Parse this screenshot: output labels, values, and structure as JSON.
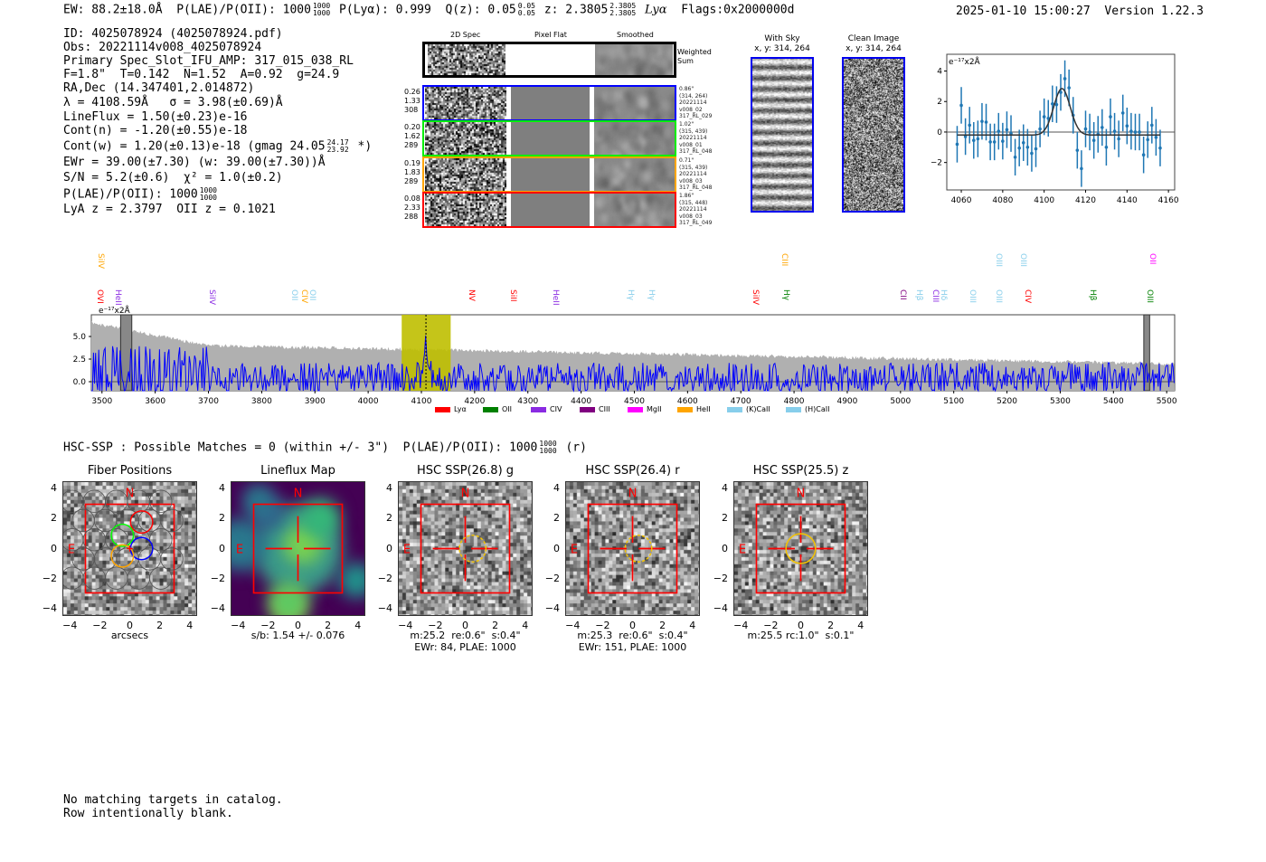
{
  "header": {
    "ew": "EW: 88.2±18.0Å",
    "plae_label": "P(LAE)/P(OII): 1000",
    "plae_hi": "1000",
    "plae_lo": "1000",
    "plya": "P(Lyα): 0.999",
    "qz": "Q(z): 0.05",
    "qz_hi": "0.05",
    "qz_lo": "0.05",
    "z": "z: 2.3805",
    "z_hi": "2.3805",
    "z_lo": "2.3805",
    "z_line": "Lyα",
    "flags": "Flags:0x2000000d",
    "timestamp": "2025-01-10 15:00:27",
    "version": "Version 1.22.3"
  },
  "info": {
    "id": "ID: 4025078924 (4025078924.pdf)",
    "obs": "Obs: 20221114v008_4025078924",
    "primary": "Primary Spec_Slot_IFU_AMP: 317_015_038_RL",
    "fiber": "F=1.8\"  T=0.142  N=1.52  A=0.92  g=24.9",
    "radec": "RA,Dec (14.347401,2.014872)",
    "lambda": "λ = 4108.59Å   σ = 3.98(±0.69)Å",
    "lineflux": "LineFlux = 1.50(±0.23)e-16",
    "contn": "Cont(n) = -1.20(±0.55)e-18",
    "contw": "Cont(w) = 1.20(±0.13)e-18 (gmag 24.05",
    "contw_hi": "24.17",
    "contw_lo": "23.92",
    "contw_end": "*)",
    "ewr": "EWr = 39.00(±7.30) (w: 39.00(±7.30))Å",
    "sn": "S/N = 5.2(±0.6)  χ² = 1.0(±0.2)",
    "plae": "P(LAE)/P(OII): 1000",
    "plae_hi": "1000",
    "plae_lo": "1000",
    "z": "LyA z = 2.3797  OII z = 0.1021"
  },
  "spec2d": {
    "col_headers": [
      "2D Spec",
      "Pixel Flat",
      "Smoothed"
    ],
    "weighted_label": "Weighted\nSum",
    "rows": [
      {
        "color": "#0000ff",
        "left": "0.26\n1.33\n308",
        "right": "0.86\"\n(314, 264)\n20221114\nv008_02\n317_RL_029"
      },
      {
        "color": "#00ee00",
        "left": "0.20\n1.62\n289",
        "right": "1.02\"\n(315, 439)\n20221114\nv008_01\n317_RL_048"
      },
      {
        "color": "#ffa500",
        "left": "0.19\n1.83\n289",
        "right": "0.71\"\n(315, 439)\n20221114\nv008_03\n317_RL_048"
      },
      {
        "color": "#ff0000",
        "left": "0.08\n2.33\n288",
        "right": "1.86\"\n(315, 448)\n20221114\nv008_03\n317_RL_049"
      }
    ]
  },
  "cutouts": {
    "with_sky": "With Sky\nx, y: 314, 264",
    "clean": "Clean Image\nx, y: 314, 264"
  },
  "hsc": {
    "summary": "HSC-SSP : Possible Matches = 0 (within +/- 3\")  P(LAE)/P(OII): 1000",
    "summary_hi": "1000",
    "summary_lo": "1000",
    "summary_end": "(r)",
    "ticks": [
      "−4",
      "−2",
      "0",
      "2",
      "4"
    ],
    "north": "N",
    "east": "E",
    "panels": [
      {
        "title": "Fiber Positions",
        "caption": "arcsecs"
      },
      {
        "title": "Lineflux Map",
        "caption": "s/b: 1.54 +/- 0.076"
      },
      {
        "title": "HSC SSP(26.8) g",
        "caption": "m:25.2  re:0.6\"  s:0.4\"\nEWr: 84, PLAE: 1000"
      },
      {
        "title": "HSC SSP(26.4) r",
        "caption": "m:25.3  re:0.6\"  s:0.4\"\nEWr: 151, PLAE: 1000"
      },
      {
        "title": "HSC SSP(25.5) z",
        "caption": "m:25.5 rc:1.0\"  s:0.1\""
      }
    ]
  },
  "footer": {
    "line1": "No matching targets in catalog.",
    "line2": "Row intentionally blank."
  },
  "chart_data": [
    {
      "type": "scatter",
      "title": "",
      "unit_label": "e⁻¹⁷x2Å",
      "xlabel": "",
      "ylabel": "",
      "xlim": [
        4053,
        4163
      ],
      "ylim": [
        -3.8,
        5.1
      ],
      "xticks": [
        "4060",
        "4080",
        "4100",
        "4120",
        "4140",
        "4160"
      ],
      "yticks": [
        "4",
        "2",
        "0",
        "−2"
      ],
      "point_color": "#1f77b4",
      "x": [
        4058,
        4060,
        4062,
        4064,
        4066,
        4068,
        4070,
        4072,
        4074,
        4076,
        4078,
        4080,
        4082,
        4084,
        4086,
        4088,
        4090,
        4092,
        4094,
        4096,
        4098,
        4100,
        4102,
        4104,
        4106,
        4108,
        4110,
        4112,
        4114,
        4116,
        4118,
        4120,
        4122,
        4124,
        4126,
        4128,
        4130,
        4132,
        4134,
        4136,
        4138,
        4140,
        4142,
        4144,
        4146,
        4148,
        4150,
        4152,
        4154,
        4156
      ],
      "y": [
        -0.8,
        1.75,
        -0.3,
        0.45,
        -0.55,
        -0.45,
        0.7,
        0.65,
        -0.65,
        -0.65,
        0.05,
        -0.6,
        0.15,
        -0.1,
        -1.65,
        -1.05,
        -0.7,
        -1.0,
        -1.4,
        -1.1,
        0.2,
        1.0,
        0.9,
        1.85,
        1.8,
        2.6,
        3.5,
        2.9,
        1.1,
        -1.2,
        -2.4,
        0.2,
        0.0,
        -0.55,
        -0.15,
        0.3,
        -1.0,
        1.0,
        0.05,
        -0.45,
        1.25,
        0.4,
        0.05,
        0.0,
        0.0,
        -1.5,
        -0.5,
        0.45,
        -0.35,
        -1.05
      ],
      "yerr": 1.2,
      "fit": {
        "type": "gaussian",
        "center": 4108.59,
        "sigma": 3.98,
        "amplitude": 3.05,
        "baseline": -0.2
      }
    },
    {
      "type": "line",
      "title": "",
      "unit_label": "e⁻¹⁷x2Å",
      "xlim": [
        3480,
        5515
      ],
      "ylim": [
        -1.0,
        7.4
      ],
      "xticks": [
        "3500",
        "3600",
        "3700",
        "3800",
        "3900",
        "4000",
        "4100",
        "4200",
        "4300",
        "4400",
        "4500",
        "4600",
        "4700",
        "4800",
        "4900",
        "5000",
        "5100",
        "5200",
        "5300",
        "5400",
        "5500"
      ],
      "yticks": [
        "5.0",
        "2.5",
        "0.0"
      ],
      "line_color": "#0000ff",
      "error_color": "#b0b0b0",
      "highlight": {
        "range": [
          4063,
          4155
        ],
        "color": "#bfbf00",
        "center": 4108.59
      },
      "masked": [
        [
          3535,
          3556
        ],
        [
          5457,
          5468
        ]
      ],
      "line_labels": [
        {
          "text": "SiIV",
          "w": 3497,
          "row": 0,
          "color": "#ffa500"
        },
        {
          "text": "CIII",
          "w": 4782,
          "row": 0,
          "color": "#ffa500"
        },
        {
          "text": "OIII",
          "w": 5184,
          "row": 0,
          "color": "#87ceeb"
        },
        {
          "text": "OIII",
          "w": 5230,
          "row": 0,
          "color": "#87ceeb"
        },
        {
          "text": "OII",
          "w": 5472,
          "row": 0,
          "color": "#ff00ff"
        },
        {
          "text": "OVI",
          "w": 3496,
          "row": 1,
          "color": "#ff0000"
        },
        {
          "text": "HeII",
          "w": 3530,
          "row": 1,
          "color": "#8a2be2"
        },
        {
          "text": "SiIV",
          "w": 3706,
          "row": 1,
          "color": "#8a2be2"
        },
        {
          "text": "OII",
          "w": 3860,
          "row": 1,
          "color": "#87ceeb"
        },
        {
          "text": "CIV",
          "w": 3880,
          "row": 1,
          "color": "#ffa500"
        },
        {
          "text": "OII",
          "w": 3894,
          "row": 1,
          "color": "#87ceeb"
        },
        {
          "text": "NV",
          "w": 4193,
          "row": 1,
          "color": "#ff0000"
        },
        {
          "text": "SiII",
          "w": 4271,
          "row": 1,
          "color": "#ff0000"
        },
        {
          "text": "HeII",
          "w": 4351,
          "row": 1,
          "color": "#8a2be2"
        },
        {
          "text": "Hγ",
          "w": 4492,
          "row": 1,
          "color": "#87ceeb"
        },
        {
          "text": "Hγ",
          "w": 4531,
          "row": 1,
          "color": "#87ceeb"
        },
        {
          "text": "SiIV",
          "w": 4727,
          "row": 1,
          "color": "#ff0000"
        },
        {
          "text": "Hγ",
          "w": 4785,
          "row": 1,
          "color": "#008000"
        },
        {
          "text": "CII",
          "w": 5004,
          "row": 1,
          "color": "#800080"
        },
        {
          "text": "Hβ",
          "w": 5034,
          "row": 1,
          "color": "#87ceeb"
        },
        {
          "text": "CIII",
          "w": 5065,
          "row": 1,
          "color": "#8a2be2"
        },
        {
          "text": "Hδ",
          "w": 5080,
          "row": 1,
          "color": "#87ceeb"
        },
        {
          "text": "OIII",
          "w": 5135,
          "row": 1,
          "color": "#87ceeb"
        },
        {
          "text": "OIII",
          "w": 5184,
          "row": 1,
          "color": "#87ceeb"
        },
        {
          "text": "CIV",
          "w": 5238,
          "row": 1,
          "color": "#ff0000"
        },
        {
          "text": "Hβ",
          "w": 5360,
          "row": 1,
          "color": "#008000"
        },
        {
          "text": "OIII",
          "w": 5467,
          "row": 1,
          "color": "#008000"
        }
      ],
      "legend": [
        {
          "label": "Lyα",
          "color": "#ff0000"
        },
        {
          "label": "OII",
          "color": "#008000"
        },
        {
          "label": "CIV",
          "color": "#8a2be2"
        },
        {
          "label": "CIII",
          "color": "#800080"
        },
        {
          "label": "MgII",
          "color": "#ff00ff"
        },
        {
          "label": "HeII",
          "color": "#ffa500"
        },
        {
          "label": "(K)CaII",
          "color": "#87ceeb"
        },
        {
          "label": "(H)CaII",
          "color": "#87ceeb"
        }
      ],
      "legend_placement": "bottom-center"
    }
  ]
}
